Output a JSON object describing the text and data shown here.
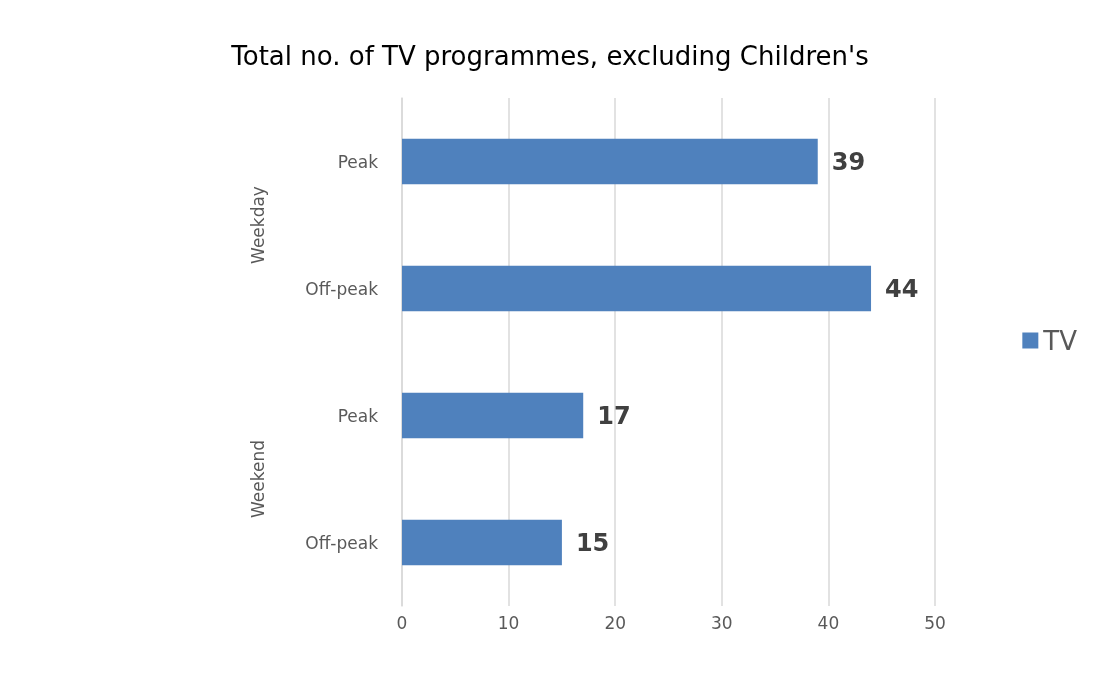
{
  "chart_data": {
    "type": "bar",
    "orientation": "horizontal",
    "title": "Total no. of TV programmes, excluding Children's",
    "categories": [
      "Peak",
      "Off-peak",
      "Peak",
      "Off-peak"
    ],
    "series": [
      {
        "name": "TV",
        "color": "#4f81bd",
        "values": [
          39,
          44,
          17,
          15
        ]
      }
    ],
    "xlim": [
      0,
      50
    ],
    "xticks": [
      0,
      10,
      20,
      30,
      40,
      50
    ],
    "grid": "x",
    "legend": "right",
    "data_labels": true,
    "annotations": [
      "Weekday",
      "Weekend"
    ]
  }
}
